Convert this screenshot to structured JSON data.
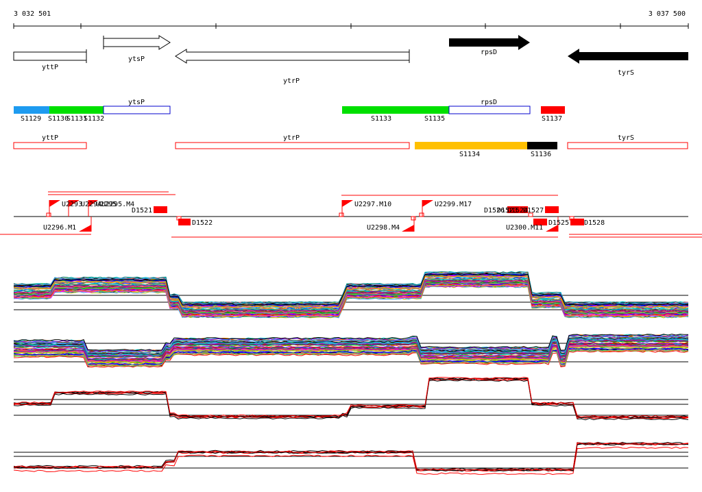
{
  "coords": {
    "start": "3 032 501",
    "end": "3 037 500"
  },
  "genes": [
    {
      "name": "yttP",
      "style": "outline",
      "dir": "left"
    },
    {
      "name": "ytsP",
      "style": "outline",
      "dir": "right"
    },
    {
      "name": "ytrP",
      "style": "outline",
      "dir": "left"
    },
    {
      "name": "rpsD",
      "style": "filled",
      "dir": "right"
    },
    {
      "name": "tyrS",
      "style": "filled",
      "dir": "left"
    }
  ],
  "segments_row1": {
    "gene_labels": [
      "ytsP",
      "rpsD"
    ],
    "segments": [
      {
        "label": "S1129",
        "color": "#1e9bf0"
      },
      {
        "label": "S1130",
        "color": "#00e000"
      },
      {
        "label": "S1131",
        "color": "#00e000"
      },
      {
        "label": "S1132",
        "color": "#00e000"
      },
      {
        "label": "S1133",
        "color": "#00e000"
      },
      {
        "label": "S1135",
        "color": "#00e000"
      },
      {
        "label": "S1137",
        "color": "#ff0000"
      }
    ]
  },
  "segments_row2": {
    "gene_labels": [
      "yttP",
      "ytrP",
      "tyrS"
    ],
    "segments": [
      {
        "label": "S1134",
        "color": "#ffc000"
      },
      {
        "label": "S1136",
        "color": "#000000"
      }
    ]
  },
  "features": {
    "up_labels": [
      "U2293",
      "U2294",
      "U2295",
      "U2295.M4",
      "U2297.M10",
      "U2299.M17"
    ],
    "down_labels": [
      "U2296.M1",
      "U2298.M4",
      "U2300.M11"
    ],
    "d_labels": [
      "D1521",
      "D1522",
      "D1525",
      "D1526",
      "D1527",
      "D1528",
      "D1523",
      "D1524"
    ]
  },
  "colors": {
    "accent_red": "#ff0000",
    "forward_fill": "#000000",
    "outline_blue": "#0000cc"
  }
}
